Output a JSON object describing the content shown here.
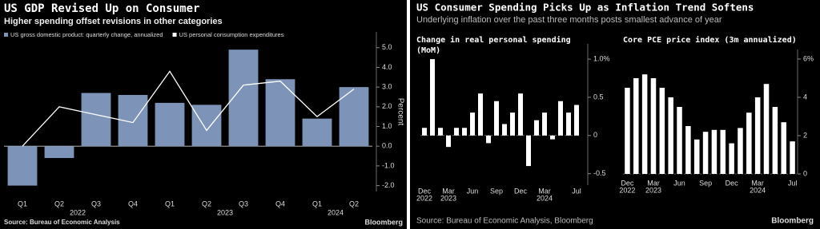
{
  "chart_data": [
    {
      "type": "combo",
      "title": "US GDP Revised Up on Consumer",
      "subtitle": "Higher spending offset revisions in other categories",
      "categories": [
        "Q1",
        "Q2",
        "Q3",
        "Q4",
        "Q1",
        "Q2",
        "Q3",
        "Q4",
        "Q1",
        "Q2"
      ],
      "category_years": [
        null,
        "2022",
        null,
        null,
        null,
        "2023",
        null,
        null,
        "2024",
        null
      ],
      "series": [
        {
          "name": "US gross domestic product: quarterly change, annualized",
          "color": "#7d93b7",
          "type": "bar",
          "values": [
            -2.0,
            -0.6,
            2.7,
            2.6,
            2.2,
            2.1,
            4.9,
            3.4,
            1.4,
            3.0
          ]
        },
        {
          "name": "US personal consumption expenditures",
          "color": "#ffffff",
          "type": "line",
          "values": [
            0.0,
            2.0,
            1.6,
            1.2,
            3.8,
            0.8,
            3.1,
            3.3,
            1.5,
            2.9
          ]
        }
      ],
      "ylabel": "Percent",
      "ylim": [
        -2.3,
        5.8
      ],
      "yticks": [
        {
          "value": 5,
          "label": "5.0"
        },
        {
          "value": 4,
          "label": "4.0"
        },
        {
          "value": 3,
          "label": "3.0"
        },
        {
          "value": 2,
          "label": "2.0"
        },
        {
          "value": 1,
          "label": "1.0"
        },
        {
          "value": 0,
          "label": "0.0"
        },
        {
          "value": -1,
          "label": "-1.0"
        },
        {
          "value": -2,
          "label": "-2.0"
        }
      ],
      "grid": false,
      "source": "Source: Bureau of Economic Analysis",
      "credit": "Bloomberg"
    },
    {
      "type": "bar",
      "title": "Change in real personal spending (MoM)",
      "categories": [
        "Dec",
        null,
        null,
        "Mar",
        null,
        null,
        "Jun",
        null,
        null,
        "Sep",
        null,
        null,
        "Dec",
        null,
        null,
        "Mar",
        null,
        null,
        null,
        "Jul"
      ],
      "category_years": [
        "2022",
        null,
        null,
        "2023",
        null,
        null,
        null,
        null,
        null,
        null,
        null,
        null,
        null,
        null,
        null,
        "2024",
        null,
        null,
        null,
        null
      ],
      "values": [
        0.1,
        1.0,
        0.1,
        -0.15,
        0.1,
        0.1,
        0.3,
        0.55,
        -0.1,
        0.45,
        0.15,
        0.3,
        0.55,
        -0.4,
        0.2,
        0.3,
        -0.05,
        0.45,
        0.3,
        0.4
      ],
      "color": "#ffffff",
      "ylim": [
        -0.65,
        1.2
      ],
      "yticks": [
        {
          "value": 1.0,
          "label": "1.0%"
        },
        0.5,
        0,
        {
          "value": -0.5,
          "label": "-0.5"
        }
      ],
      "grid": false
    },
    {
      "type": "bar",
      "title": "Core PCE price index (3m annualized)",
      "categories": [
        "Dec",
        null,
        null,
        "Mar",
        null,
        null,
        "Jun",
        null,
        null,
        "Sep",
        null,
        null,
        "Dec",
        null,
        null,
        "Mar",
        null,
        null,
        null,
        "Jul"
      ],
      "category_years": [
        "2022",
        null,
        null,
        "2023",
        null,
        null,
        null,
        null,
        null,
        null,
        null,
        null,
        null,
        null,
        null,
        "2024",
        null,
        null,
        null,
        null
      ],
      "values": [
        4.5,
        5.0,
        5.2,
        5.0,
        4.5,
        4.0,
        3.5,
        2.5,
        1.8,
        2.2,
        2.3,
        2.3,
        1.6,
        2.4,
        3.2,
        4.0,
        4.7,
        3.5,
        2.7,
        1.7
      ],
      "color": "#ffffff",
      "ylim": [
        0,
        6.5
      ],
      "yticks": [
        {
          "value": 6,
          "label": "6%"
        },
        4,
        2,
        0
      ],
      "grid": false
    }
  ],
  "right_figure": {
    "title": "US Consumer Spending Picks Up as Inflation Trend Softens",
    "subtitle": "Underlying inflation over the past three months posts smallest advance of year",
    "source": "Source: Bureau of Economic Analysis, Bloomberg",
    "credit": "Bloomberg"
  }
}
